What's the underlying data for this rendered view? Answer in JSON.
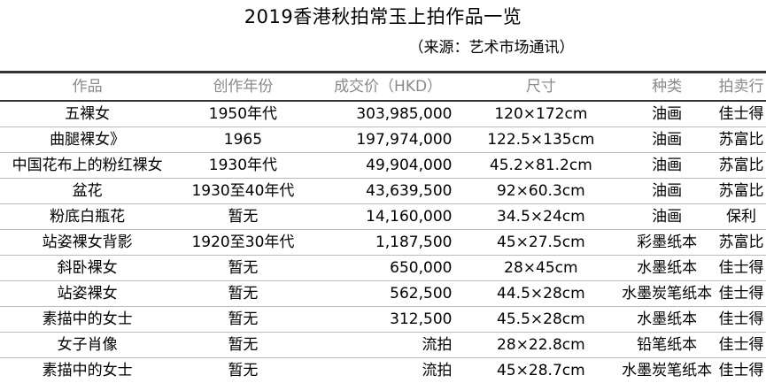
{
  "title": "2019香港秋拍常玉上拍作品一览",
  "source": "（来源：艺术市场通讯）",
  "table": {
    "headers": [
      "作品",
      "创作年份",
      "成交价（HKD）",
      "尺寸",
      "种类",
      "拍卖行"
    ],
    "rows": [
      [
        "五裸女",
        "1950年代",
        "303,985,000",
        "120×172cm",
        "油画",
        "佳士得"
      ],
      [
        "曲腿裸女》",
        "1965",
        "197,974,000",
        "122.5×135cm",
        "油画",
        "苏富比"
      ],
      [
        "中国花布上的粉红裸女",
        "1930年代",
        "49,904,000",
        "45.2×81.2cm",
        "油画",
        "苏富比"
      ],
      [
        "盆花",
        "1930至40年代",
        "43,639,500",
        "92×60.3cm",
        "油画",
        "苏富比"
      ],
      [
        "粉底白瓶花",
        "暂无",
        "14,160,000",
        "34.5×24cm",
        "油画",
        "保利"
      ],
      [
        "站姿裸女背影",
        "1920至30年代",
        "1,187,500",
        "45×27.5cm",
        "彩墨纸本",
        "苏富比"
      ],
      [
        "斜卧裸女",
        "暂无",
        "650,000",
        "28×45cm",
        "水墨纸本",
        "佳士得"
      ],
      [
        "站姿裸女",
        "暂无",
        "562,500",
        "44.5×28cm",
        "水墨炭笔纸本",
        "佳士得"
      ],
      [
        "素描中的女士",
        "暂无",
        "312,500",
        "45.5×28cm",
        "水墨纸本",
        "佳士得"
      ],
      [
        "女子肖像",
        "暂无",
        "流拍",
        "28×22.8cm",
        "铅笔纸本",
        "佳士得"
      ],
      [
        "素描中的女士",
        "暂无",
        "流拍",
        "45×28.7cm",
        "水墨炭笔纸本",
        "佳士得"
      ]
    ]
  }
}
